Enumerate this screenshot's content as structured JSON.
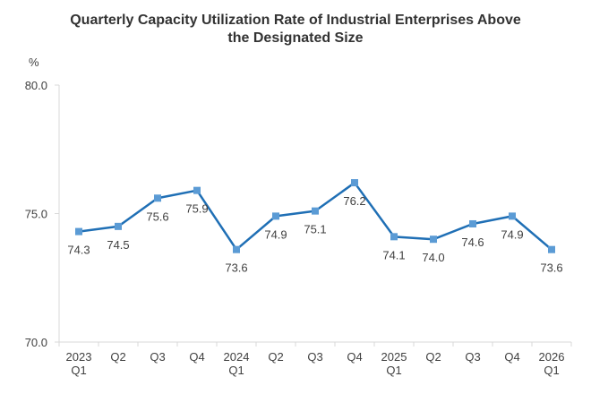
{
  "chart_data": {
    "type": "line",
    "title": [
      "Quarterly Capacity Utilization  Rate of Industrial Enterprises Above",
      "the Designated Size"
    ],
    "ylabel": "%",
    "xlabel": "",
    "ylim": [
      70.0,
      80.0
    ],
    "yticks": [
      "70.0",
      "75.0",
      "80.0"
    ],
    "ytick_values": [
      70.0,
      75.0,
      80.0
    ],
    "grid": false,
    "legend": "none",
    "categories": [
      [
        "2023",
        "Q1"
      ],
      [
        "Q2"
      ],
      [
        "Q3"
      ],
      [
        "Q4"
      ],
      [
        "2024",
        "Q1"
      ],
      [
        "Q2"
      ],
      [
        "Q3"
      ],
      [
        "Q4"
      ],
      [
        "2025",
        "Q1"
      ],
      [
        "Q2"
      ],
      [
        "Q3"
      ],
      [
        "Q4"
      ],
      [
        "2026",
        "Q1"
      ]
    ],
    "series": [
      {
        "name": "Capacity Utilization Rate",
        "color": "#1F6FB5",
        "marker_color": "#5B9BD5",
        "values": [
          74.3,
          74.5,
          75.6,
          75.9,
          73.6,
          74.9,
          75.1,
          76.2,
          74.1,
          74.0,
          74.6,
          74.9,
          73.6
        ],
        "labels": [
          "74.3",
          "74.5",
          "75.6",
          "75.9",
          "73.6",
          "74.9",
          "75.1",
          "76.2",
          "74.1",
          "74.0",
          "74.6",
          "74.9",
          "73.6"
        ],
        "label_position": [
          "below",
          "below",
          "below",
          "below",
          "below",
          "below",
          "below",
          "below",
          "below",
          "below",
          "below",
          "below",
          "below"
        ]
      }
    ],
    "axis_color": "#D9D9D9",
    "text_color": "#404040"
  }
}
